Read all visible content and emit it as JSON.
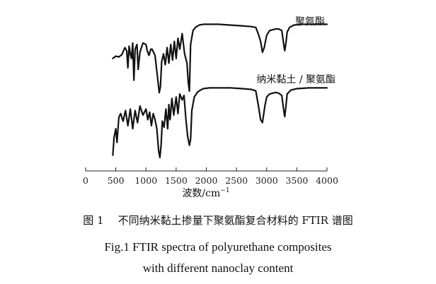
{
  "chart_data": {
    "type": "line",
    "xlabel": "波数/cm",
    "xlabel_superscript": "−1",
    "xlim": [
      0,
      4000
    ],
    "x_ticks": [
      0,
      500,
      1000,
      1500,
      2000,
      2500,
      3000,
      3500,
      4000
    ],
    "y_axis_shown": false,
    "grid": false,
    "legend": "none",
    "series": [
      {
        "name": "聚氨酯",
        "x": [
          450,
          500,
          550,
          600,
          650,
          680,
          700,
          720,
          740,
          760,
          780,
          800,
          820,
          850,
          870,
          900,
          950,
          1000,
          1020,
          1050,
          1080,
          1100,
          1150,
          1200,
          1220,
          1240,
          1260,
          1290,
          1320,
          1350,
          1380,
          1410,
          1440,
          1470,
          1500,
          1530,
          1560,
          1600,
          1640,
          1680,
          1700,
          1720,
          1740,
          1780,
          1820,
          1880,
          1950,
          2050,
          2200,
          2400,
          2600,
          2750,
          2820,
          2860,
          2900,
          2930,
          2960,
          3000,
          3050,
          3100,
          3150,
          3200,
          3250,
          3280,
          3300,
          3320,
          3340,
          3380,
          3450,
          3600,
          3800,
          4000
        ],
        "values": [
          0.52,
          0.55,
          0.54,
          0.57,
          0.66,
          0.62,
          0.4,
          0.68,
          0.58,
          0.52,
          0.72,
          0.24,
          0.64,
          0.7,
          0.38,
          0.6,
          0.72,
          0.7,
          0.62,
          0.56,
          0.64,
          0.64,
          0.56,
          0.22,
          0.08,
          0.16,
          0.48,
          0.58,
          0.44,
          0.66,
          0.46,
          0.7,
          0.5,
          0.74,
          0.52,
          0.78,
          0.64,
          0.84,
          0.58,
          0.46,
          0.22,
          0.1,
          0.7,
          0.88,
          0.92,
          0.95,
          0.96,
          0.96,
          0.96,
          0.95,
          0.94,
          0.93,
          0.92,
          0.84,
          0.74,
          0.6,
          0.66,
          0.82,
          0.88,
          0.89,
          0.9,
          0.9,
          0.88,
          0.72,
          0.62,
          0.72,
          0.86,
          0.92,
          0.95,
          0.96,
          0.96,
          0.96
        ]
      },
      {
        "name": "纳米黏土 / 聚氨酯",
        "x": [
          450,
          470,
          500,
          520,
          550,
          580,
          620,
          660,
          700,
          740,
          780,
          820,
          860,
          900,
          950,
          1000,
          1030,
          1060,
          1090,
          1120,
          1150,
          1180,
          1210,
          1230,
          1250,
          1270,
          1300,
          1330,
          1360,
          1380,
          1400,
          1430,
          1460,
          1500,
          1530,
          1560,
          1600,
          1630,
          1660,
          1690,
          1720,
          1740,
          1760,
          1800,
          1850,
          1900,
          1950,
          2050,
          2200,
          2400,
          2600,
          2750,
          2820,
          2860,
          2900,
          2930,
          2970,
          3000,
          3050,
          3100,
          3150,
          3200,
          3250,
          3280,
          3300,
          3320,
          3340,
          3400,
          3500,
          3700,
          4000
        ],
        "values": [
          0.05,
          0.28,
          0.4,
          0.22,
          0.55,
          0.6,
          0.5,
          0.64,
          0.44,
          0.66,
          0.4,
          0.64,
          0.48,
          0.7,
          0.58,
          0.66,
          0.52,
          0.62,
          0.44,
          0.6,
          0.52,
          0.4,
          0.1,
          0.02,
          0.18,
          0.5,
          0.42,
          0.66,
          0.4,
          0.72,
          0.52,
          0.8,
          0.58,
          0.82,
          0.6,
          0.86,
          0.78,
          0.84,
          0.54,
          0.3,
          0.18,
          0.26,
          0.64,
          0.82,
          0.88,
          0.91,
          0.93,
          0.94,
          0.94,
          0.94,
          0.93,
          0.92,
          0.9,
          0.72,
          0.52,
          0.48,
          0.7,
          0.82,
          0.86,
          0.87,
          0.88,
          0.87,
          0.84,
          0.66,
          0.56,
          0.7,
          0.86,
          0.91,
          0.93,
          0.94,
          0.94
        ]
      }
    ]
  },
  "caption": {
    "zh_number": "图 1",
    "zh_text": "不同纳米黏土掺量下聚氨酯复合材料的 FTIR 谱图",
    "en_line1": "Fig.1 FTIR spectra of polyurethane composites",
    "en_line2": "with different nanoclay content"
  }
}
